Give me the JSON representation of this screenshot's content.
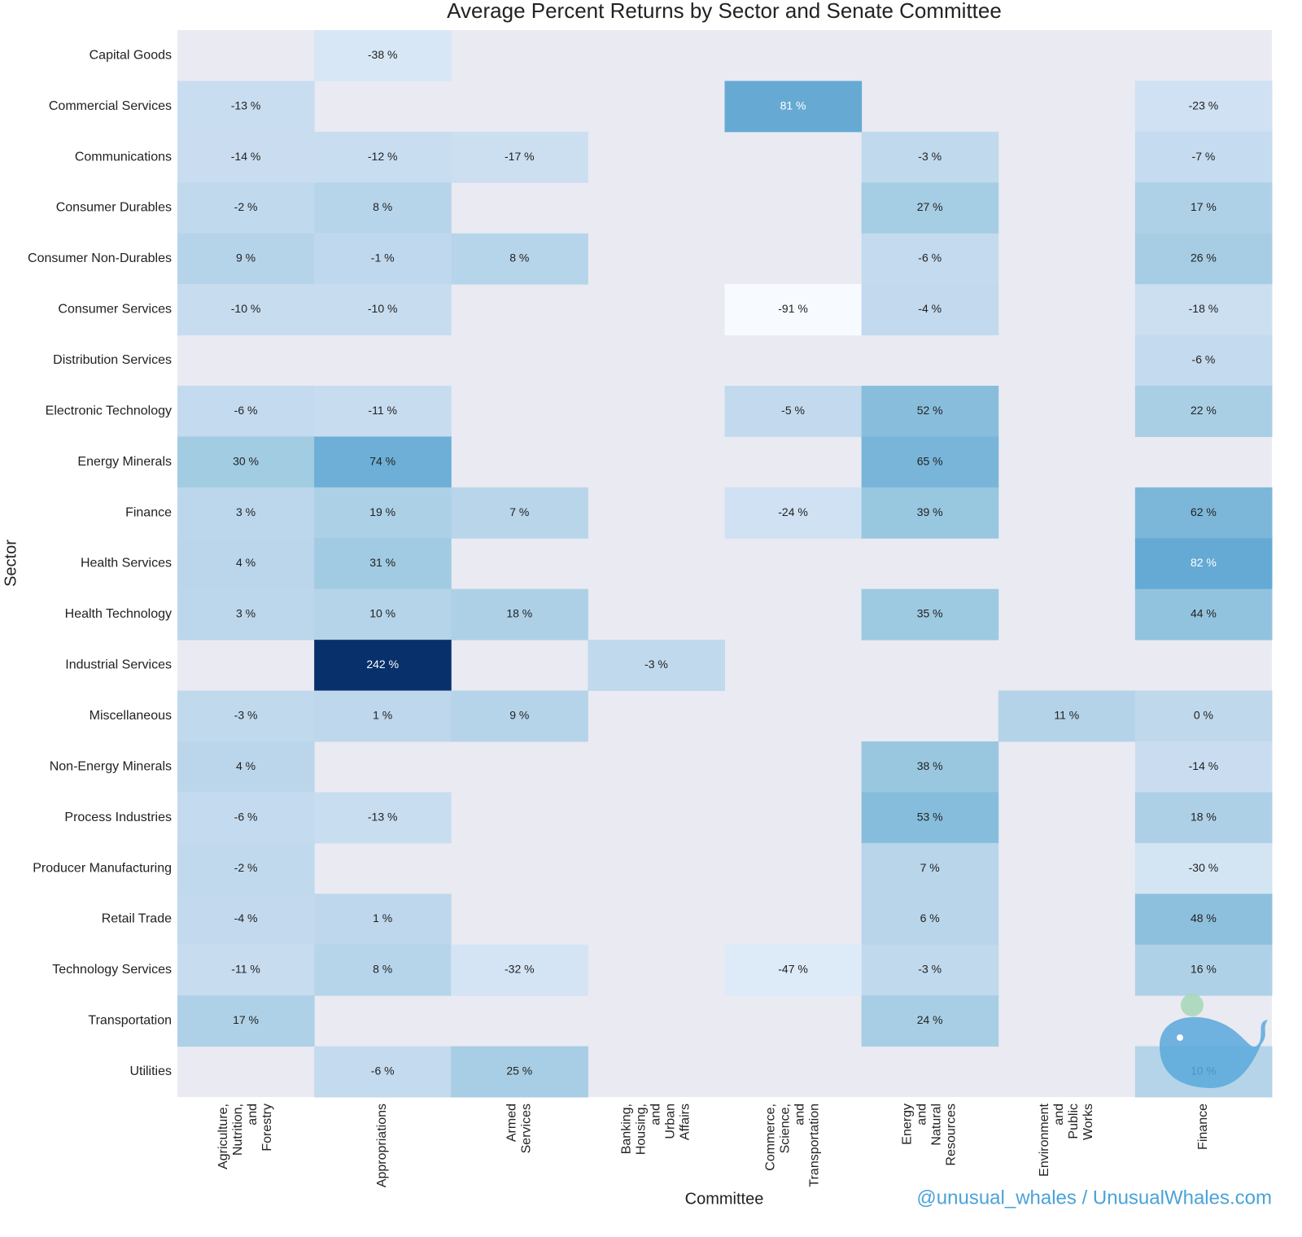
{
  "chart_data": {
    "type": "heatmap",
    "title": "Average Percent Returns by Sector and Senate Committee",
    "x_label": "Committee",
    "y_label": "Sector",
    "annotation": "@unusual_whales / UnusualWhales.com",
    "x_categories": [
      "Agriculture, Nutrition, and Forestry",
      "Appropriations",
      "Armed Services",
      "Banking, Housing, and Urban Affairs",
      "Commerce, Science, and Transportation",
      "Energy and Natural Resources",
      "Environment and Public Works",
      "Finance"
    ],
    "y_categories": [
      "Capital Goods",
      "Commercial Services",
      "Communications",
      "Consumer Durables",
      "Consumer Non-Durables",
      "Consumer Services",
      "Distribution Services",
      "Electronic Technology",
      "Energy Minerals",
      "Finance",
      "Health Services",
      "Health Technology",
      "Industrial Services",
      "Miscellaneous",
      "Non-Energy Minerals",
      "Process Industries",
      "Producer Manufacturing",
      "Retail Trade",
      "Technology Services",
      "Transportation",
      "Utilities"
    ],
    "values": [
      [
        null,
        -38,
        null,
        null,
        null,
        null,
        null,
        null
      ],
      [
        -13,
        null,
        null,
        null,
        81,
        null,
        null,
        -23
      ],
      [
        -14,
        -12,
        -17,
        null,
        null,
        -3,
        null,
        -7
      ],
      [
        -2,
        8,
        null,
        null,
        null,
        27,
        null,
        17
      ],
      [
        9,
        -1,
        8,
        null,
        null,
        -6,
        null,
        26
      ],
      [
        -10,
        -10,
        null,
        null,
        -91,
        -4,
        null,
        -18
      ],
      [
        null,
        null,
        null,
        null,
        null,
        null,
        null,
        -6
      ],
      [
        -6,
        -11,
        null,
        null,
        -5,
        52,
        null,
        22
      ],
      [
        30,
        74,
        null,
        null,
        null,
        65,
        null,
        null
      ],
      [
        3,
        19,
        7,
        null,
        -24,
        39,
        null,
        62
      ],
      [
        4,
        31,
        null,
        null,
        null,
        null,
        null,
        82
      ],
      [
        3,
        10,
        18,
        null,
        null,
        35,
        null,
        44
      ],
      [
        null,
        242,
        null,
        -3,
        null,
        null,
        null,
        null
      ],
      [
        -3,
        1,
        9,
        null,
        null,
        null,
        11,
        0
      ],
      [
        4,
        null,
        null,
        null,
        null,
        38,
        null,
        -14
      ],
      [
        -6,
        -13,
        null,
        null,
        null,
        53,
        null,
        18
      ],
      [
        -2,
        null,
        null,
        null,
        null,
        7,
        null,
        -30
      ],
      [
        -4,
        1,
        null,
        null,
        null,
        6,
        null,
        48
      ],
      [
        -11,
        8,
        -32,
        null,
        -47,
        -3,
        null,
        16
      ],
      [
        17,
        null,
        null,
        null,
        null,
        24,
        null,
        null
      ],
      [
        null,
        -6,
        25,
        null,
        null,
        null,
        null,
        10
      ]
    ],
    "value_labels": [
      [
        null,
        "-38 %",
        null,
        null,
        null,
        null,
        null,
        null
      ],
      [
        "-13 %",
        null,
        null,
        null,
        "81 %",
        null,
        null,
        "-23 %"
      ],
      [
        "-14 %",
        "-12 %",
        "-17 %",
        null,
        null,
        "-3 %",
        null,
        "-7 %"
      ],
      [
        "-2 %",
        "8 %",
        null,
        null,
        null,
        "27 %",
        null,
        "17 %"
      ],
      [
        "9 %",
        "-1 %",
        "8 %",
        null,
        null,
        "-6 %",
        null,
        "26 %"
      ],
      [
        "-10 %",
        "-10 %",
        null,
        null,
        "-91 %",
        "-4 %",
        null,
        "-18 %"
      ],
      [
        null,
        null,
        null,
        null,
        null,
        null,
        null,
        "-6 %"
      ],
      [
        "-6 %",
        "-11 %",
        null,
        null,
        "-5 %",
        "52 %",
        null,
        "22 %"
      ],
      [
        "30 %",
        "74 %",
        null,
        null,
        null,
        "65 %",
        null,
        null
      ],
      [
        "3 %",
        "19 %",
        "7 %",
        null,
        "-24 %",
        "39 %",
        null,
        "62 %"
      ],
      [
        "4 %",
        "31 %",
        null,
        null,
        null,
        null,
        null,
        "82 %"
      ],
      [
        "3 %",
        "10 %",
        "18 %",
        null,
        null,
        "35 %",
        null,
        "44 %"
      ],
      [
        null,
        "242 %",
        null,
        "-3 %",
        null,
        null,
        null,
        null
      ],
      [
        "-3 %",
        "1 %",
        "9 %",
        null,
        null,
        null,
        "11 %",
        "0 %"
      ],
      [
        "4 %",
        null,
        null,
        null,
        null,
        "38 %",
        null,
        "-14 %"
      ],
      [
        "-6 %",
        "-13 %",
        null,
        null,
        null,
        "53 %",
        null,
        "18 %"
      ],
      [
        "-2 %",
        null,
        null,
        null,
        null,
        "7 %",
        null,
        "-30 %"
      ],
      [
        "-4 %",
        "1 %",
        null,
        null,
        null,
        "6 %",
        null,
        "48 %"
      ],
      [
        "-11 %",
        "8 %",
        "-32 %",
        null,
        "-47 %",
        "-3 %",
        null,
        "16 %"
      ],
      [
        "17 %",
        null,
        null,
        null,
        null,
        "24 %",
        null,
        null
      ],
      [
        null,
        "-6 %",
        "25 %",
        null,
        null,
        null,
        null,
        "10 %"
      ]
    ],
    "colormap": [
      "#f7fbff",
      "#deebf7",
      "#c6dbef",
      "#9ecae1",
      "#6baed6",
      "#4292c6",
      "#2171b5",
      "#08519c",
      "#08306b"
    ],
    "background": "#eaeaf2"
  }
}
